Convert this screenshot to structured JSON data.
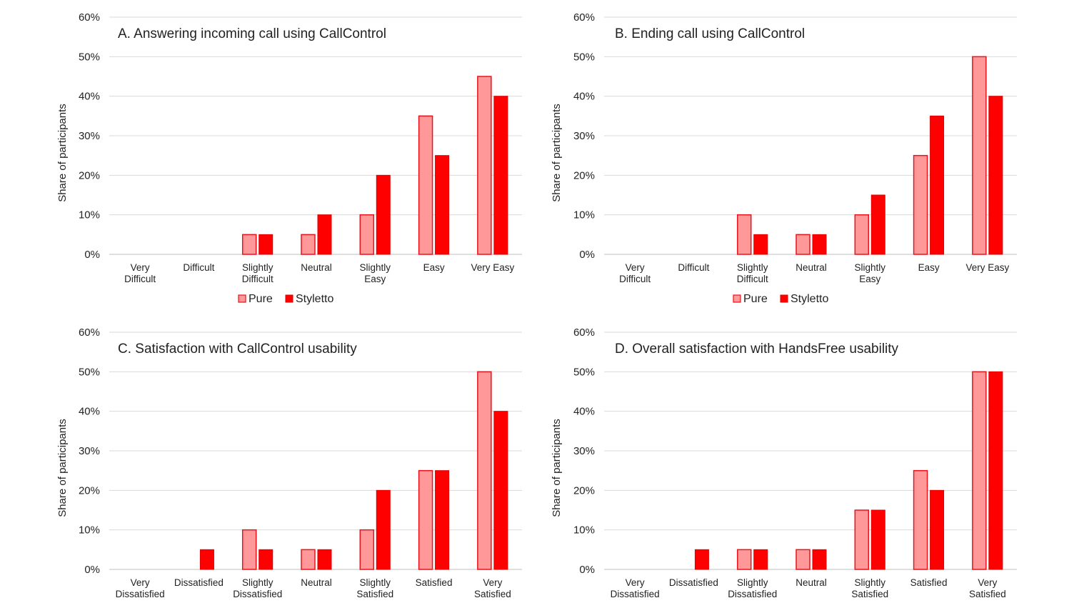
{
  "legend": {
    "pure": "Pure",
    "styletto": "Styletto"
  },
  "colors": {
    "pure_fill": "#FF9999",
    "pure_stroke": "#E8131B",
    "styletto_fill": "#FF0000",
    "styletto_stroke": "#E00000",
    "grid": "#d9d9d9"
  },
  "chart_data": [
    {
      "type": "bar",
      "title": "A. Answering incoming call using CallControl",
      "ylabel": "Share of participants",
      "ylim": [
        0,
        60
      ],
      "yticks": [
        "0%",
        "10%",
        "20%",
        "30%",
        "40%",
        "50%",
        "60%"
      ],
      "categories": [
        [
          "Very",
          "Difficult"
        ],
        [
          "Difficult"
        ],
        [
          "Slightly",
          "Difficult"
        ],
        [
          "Neutral"
        ],
        [
          "Slightly",
          "Easy"
        ],
        [
          "Easy"
        ],
        [
          "Very Easy"
        ]
      ],
      "series": [
        {
          "name": "Pure",
          "values": [
            0,
            0,
            5,
            5,
            10,
            35,
            45
          ]
        },
        {
          "name": "Styletto",
          "values": [
            0,
            0,
            5,
            10,
            20,
            25,
            40
          ]
        }
      ],
      "legend_position": "bottom"
    },
    {
      "type": "bar",
      "title": "B. Ending call using CallControl",
      "ylabel": "Share of participants",
      "ylim": [
        0,
        60
      ],
      "yticks": [
        "0%",
        "10%",
        "20%",
        "30%",
        "40%",
        "50%",
        "60%"
      ],
      "categories": [
        [
          "Very",
          "Difficult"
        ],
        [
          "Difficult"
        ],
        [
          "Slightly",
          "Difficult"
        ],
        [
          "Neutral"
        ],
        [
          "Slightly",
          "Easy"
        ],
        [
          "Easy"
        ],
        [
          "Very Easy"
        ]
      ],
      "series": [
        {
          "name": "Pure",
          "values": [
            0,
            0,
            10,
            5,
            10,
            25,
            50
          ]
        },
        {
          "name": "Styletto",
          "values": [
            0,
            0,
            5,
            5,
            15,
            35,
            40
          ]
        }
      ],
      "legend_position": "bottom"
    },
    {
      "type": "bar",
      "title": "C. Satisfaction with CallControl usability",
      "ylabel": "Share of participants",
      "ylim": [
        0,
        60
      ],
      "yticks": [
        "0%",
        "10%",
        "20%",
        "30%",
        "40%",
        "50%",
        "60%"
      ],
      "categories": [
        [
          "Very",
          "Dissatisfied"
        ],
        [
          "Dissatisfied"
        ],
        [
          "Slightly",
          "Dissatisfied"
        ],
        [
          "Neutral"
        ],
        [
          "Slightly",
          "Satisfied"
        ],
        [
          "Satisfied"
        ],
        [
          "Very",
          "Satisfied"
        ]
      ],
      "series": [
        {
          "name": "Pure",
          "values": [
            0,
            0,
            10,
            5,
            10,
            25,
            50
          ]
        },
        {
          "name": "Styletto",
          "values": [
            0,
            5,
            5,
            5,
            20,
            25,
            40
          ]
        }
      ]
    },
    {
      "type": "bar",
      "title": "D. Overall satisfaction with HandsFree usability",
      "ylabel": "Share of participants",
      "ylim": [
        0,
        60
      ],
      "yticks": [
        "0%",
        "10%",
        "20%",
        "30%",
        "40%",
        "50%",
        "60%"
      ],
      "categories": [
        [
          "Very",
          "Dissatisfied"
        ],
        [
          "Dissatisfied"
        ],
        [
          "Slightly",
          "Dissatisfied"
        ],
        [
          "Neutral"
        ],
        [
          "Slightly",
          "Satisfied"
        ],
        [
          "Satisfied"
        ],
        [
          "Very",
          "Satisfied"
        ]
      ],
      "series": [
        {
          "name": "Pure",
          "values": [
            0,
            0,
            5,
            5,
            15,
            25,
            50
          ]
        },
        {
          "name": "Styletto",
          "values": [
            0,
            5,
            5,
            5,
            15,
            20,
            50
          ]
        }
      ]
    }
  ]
}
